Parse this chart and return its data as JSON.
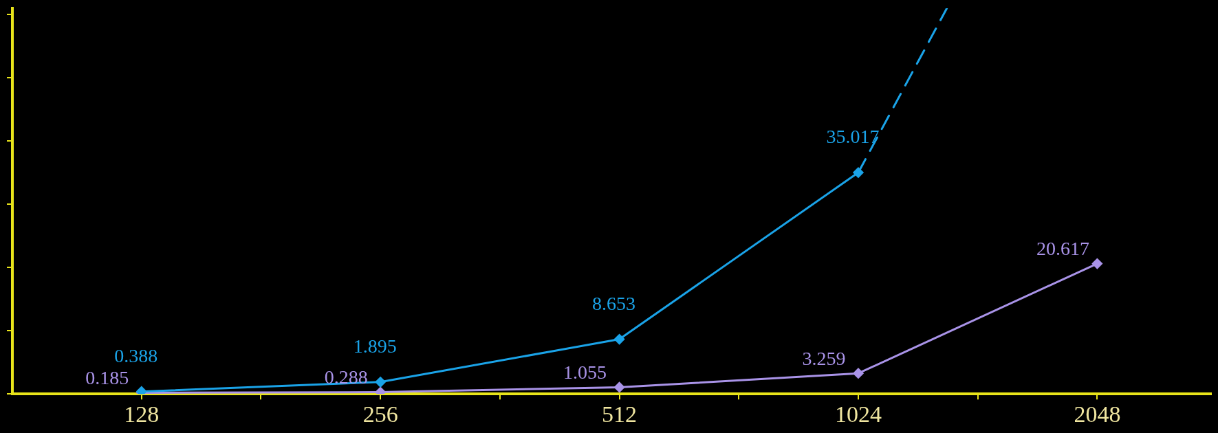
{
  "chart_data": {
    "type": "line",
    "x": [
      128,
      256,
      512,
      1024,
      2048
    ],
    "xlim": [
      88,
      2850
    ],
    "xticks": [
      128,
      {
        "value": 181,
        "label": null
      },
      256,
      {
        "value": 362,
        "label": null
      },
      512,
      {
        "value": 724,
        "label": null
      },
      1024,
      {
        "value": 1448,
        "label": null
      },
      2048
    ],
    "ylim": [
      0,
      61
    ],
    "yticks": [
      {
        "value": 0,
        "label": null
      },
      {
        "value": 10,
        "label": null
      },
      {
        "value": 20,
        "label": null
      },
      {
        "value": 30,
        "label": null
      },
      {
        "value": 40,
        "label": null
      },
      {
        "value": 50,
        "label": null
      },
      {
        "value": 60,
        "label": null
      }
    ],
    "log": "x",
    "grid": false,
    "legend": false,
    "marker": "diamond",
    "line_style": "solid",
    "series": [
      {
        "color": "#1aa3e8",
        "x": [
          128,
          256,
          512,
          1024
        ],
        "values": [
          0.388,
          1.895,
          8.653,
          35.017
        ],
        "value_labels": [
          "0.388",
          "1.895",
          "8.653",
          "35.017"
        ]
      },
      {
        "color": "#1aa3e8",
        "x": [
          1024,
          1324
        ],
        "values": [
          35.017,
          61
        ],
        "line_style": "dashed",
        "marker": "none"
      },
      {
        "color": "#a993e8",
        "values": [
          0.185,
          0.288,
          1.055,
          3.259,
          20.617
        ],
        "value_labels": [
          "0.185",
          "0.288",
          "1.055",
          "3.259",
          "20.617"
        ]
      }
    ]
  }
}
